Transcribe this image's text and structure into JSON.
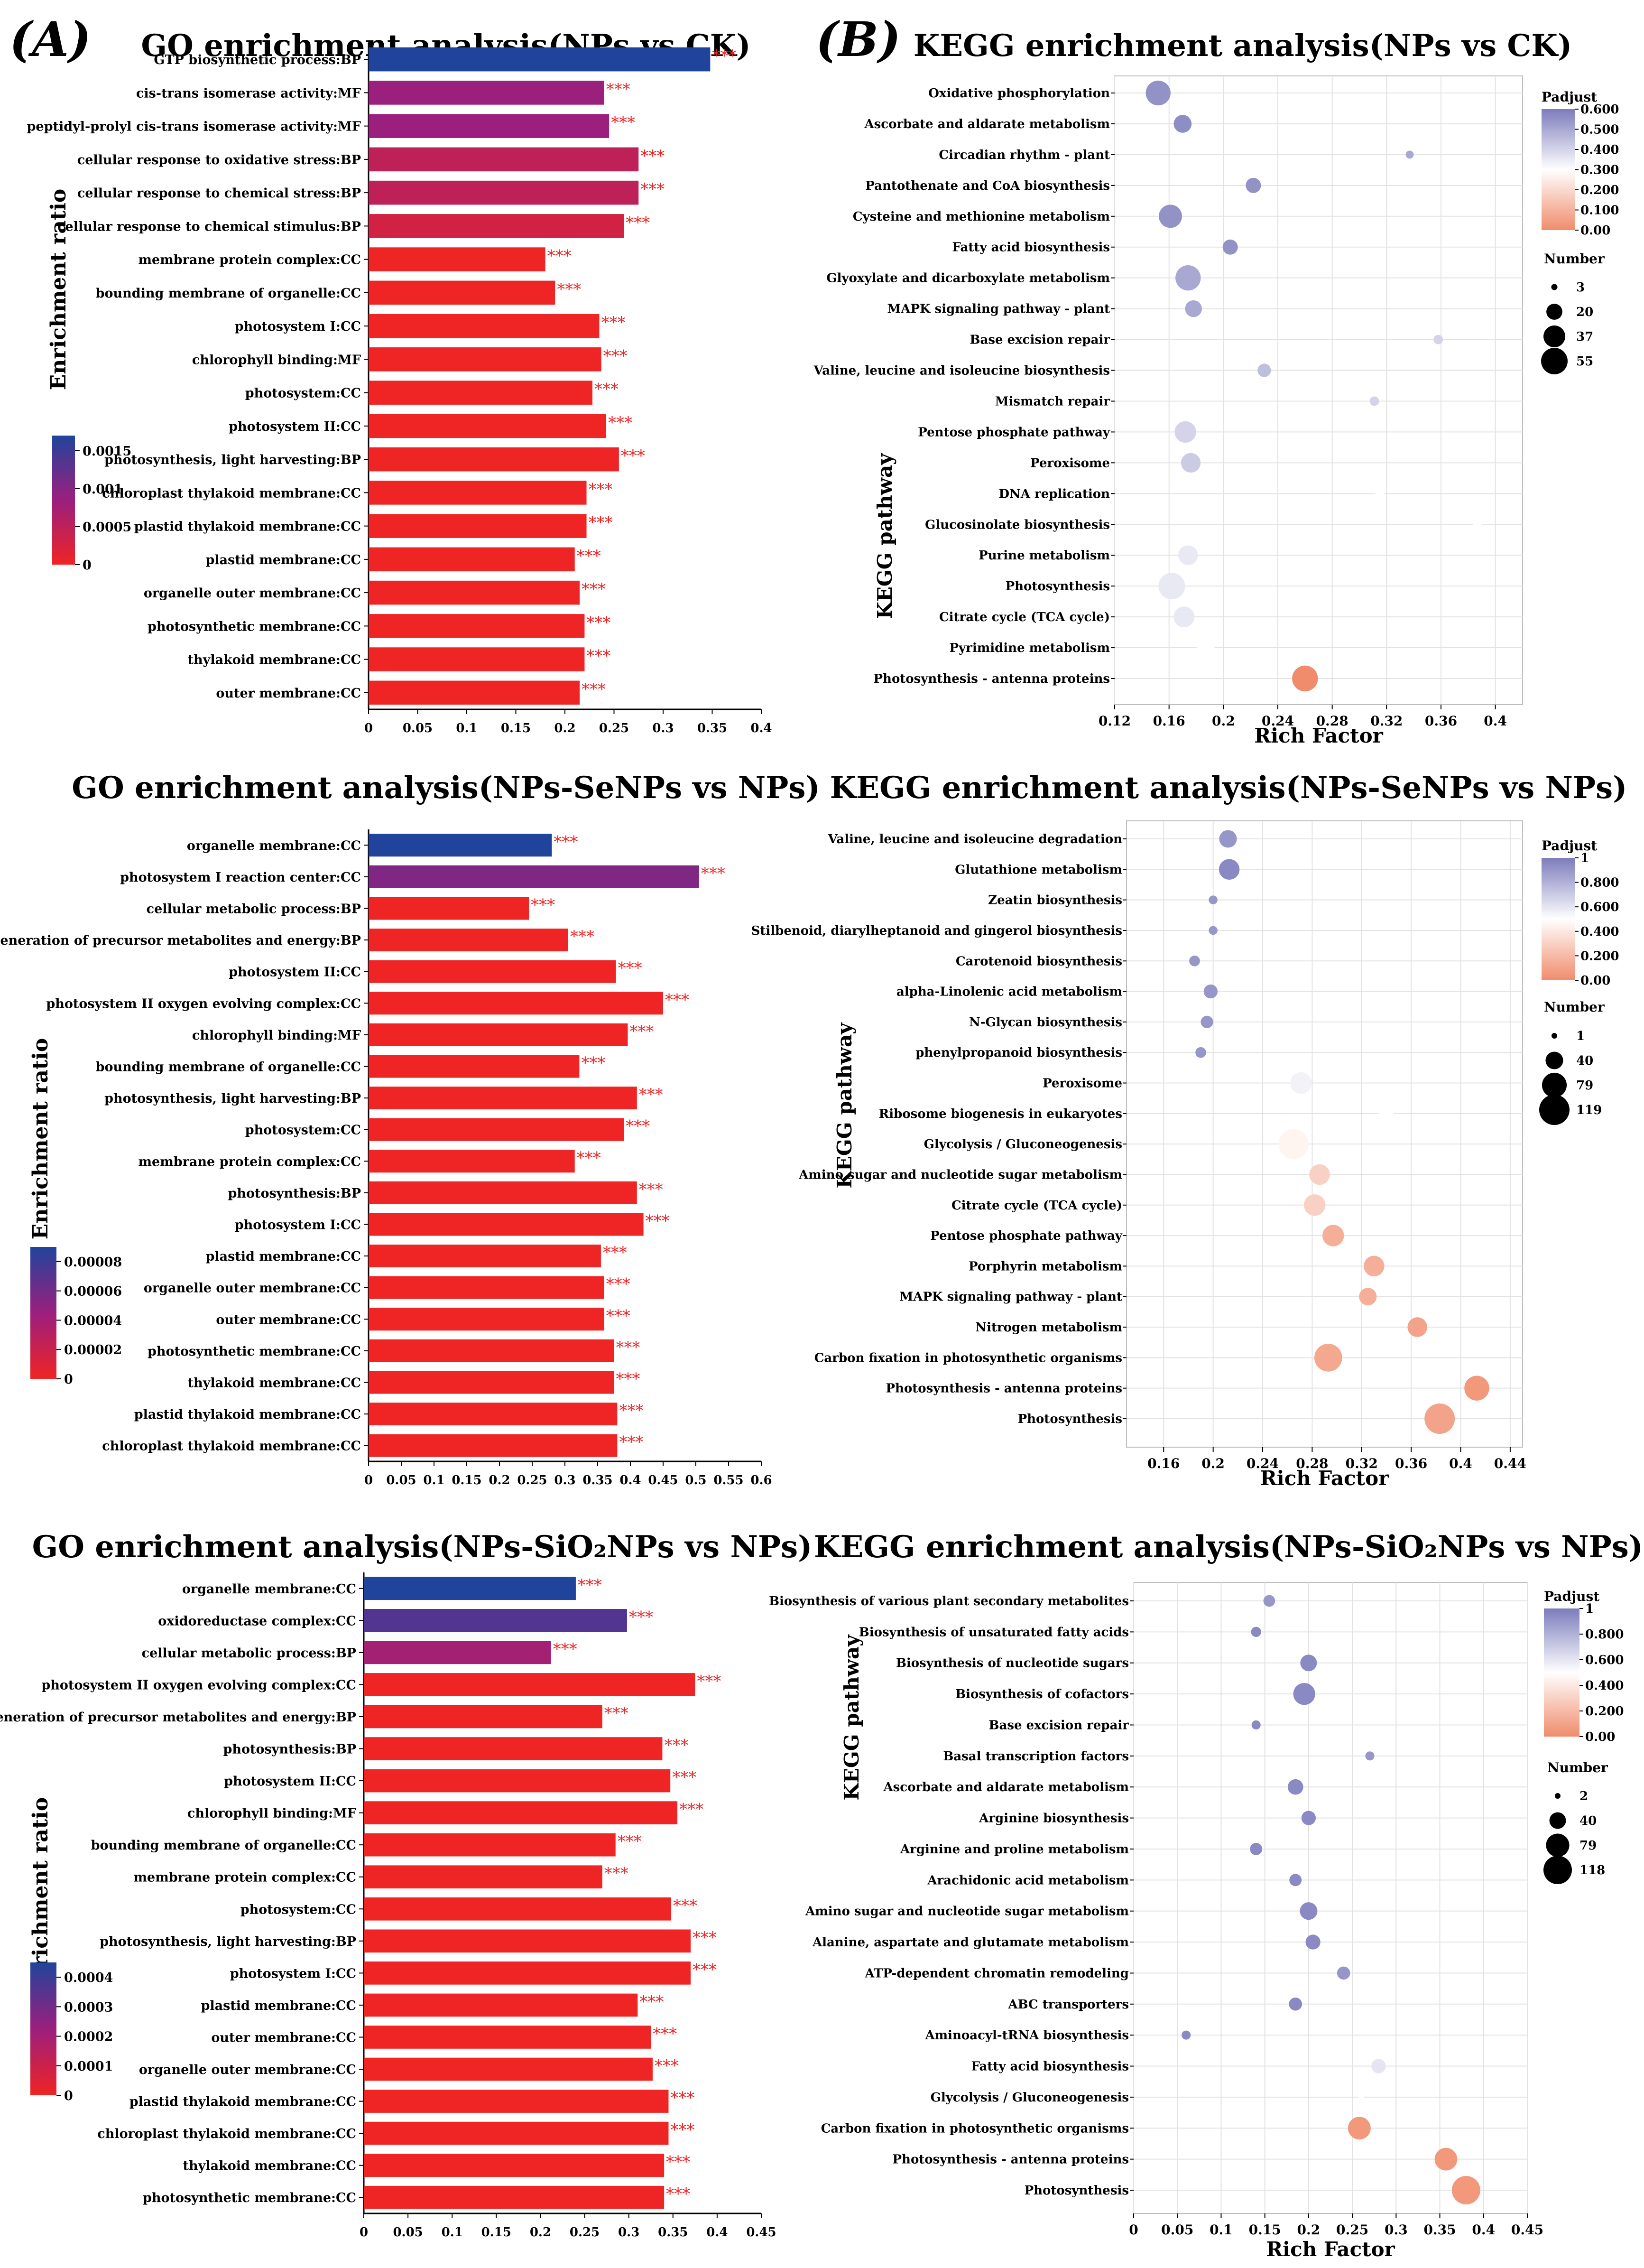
{
  "panel_labels": {
    "A": "(A)",
    "B": "(B)"
  },
  "chart_data": [
    {
      "id": "go1",
      "type": "bar",
      "orientation": "horizontal",
      "title": "GO enrichment analysis(NPs vs CK)",
      "ylabel": "Enrichment ratio",
      "xlim": [
        0,
        0.4
      ],
      "xticks": [
        "0",
        "0.05",
        "0.1",
        "0.15",
        "0.2",
        "0.25",
        "0.3",
        "0.35",
        "0.4"
      ],
      "significance": "***",
      "categories": [
        "GTP biosynthetic process:BP",
        "cis-trans isomerase activity:MF",
        "peptidyl-prolyl cis-trans isomerase activity:MF",
        "cellular response to oxidative stress:BP",
        "cellular response to chemical stress:BP",
        "cellular response to chemical stimulus:BP",
        "membrane protein complex:CC",
        "bounding membrane of organelle:CC",
        "photosystem I:CC",
        "chlorophyll binding:MF",
        "photosystem:CC",
        "photosystem II:CC",
        "photosynthesis, light harvesting:BP",
        "chloroplast thylakoid membrane:CC",
        "plastid thylakoid membrane:CC",
        "plastid membrane:CC",
        "organelle outer membrane:CC",
        "photosynthetic membrane:CC",
        "thylakoid membrane:CC",
        "outer membrane:CC"
      ],
      "values": [
        0.348,
        0.24,
        0.245,
        0.275,
        0.275,
        0.26,
        0.18,
        0.19,
        0.235,
        0.237,
        0.228,
        0.242,
        0.255,
        0.222,
        0.222,
        0.21,
        0.215,
        0.22,
        0.22,
        0.215
      ],
      "padj": [
        0.0017,
        0.00085,
        0.00085,
        0.0005,
        0.0005,
        0.0003,
        0.0,
        0.0,
        0.0,
        0.0,
        0.0,
        0.0,
        0.0,
        0.0,
        0.0,
        0.0,
        0.0,
        0.0,
        0.0,
        0.0
      ],
      "color_scale": {
        "range": [
          0,
          0.0017
        ],
        "ticks": [
          "0.0015",
          "0.001",
          "0.0005",
          "0"
        ],
        "tick_values": [
          0.0015,
          0.001,
          0.0005,
          0
        ],
        "colors": [
          "#ef2424",
          "#9b1f7d",
          "#20449c"
        ]
      }
    },
    {
      "id": "go2",
      "type": "bar",
      "orientation": "horizontal",
      "title": "GO enrichment analysis(NPs-SeNPs  vs  NPs)",
      "ylabel": "Enrichment ratio",
      "xlim": [
        0,
        0.6
      ],
      "xticks": [
        "0",
        "0.05",
        "0.1",
        "0.15",
        "0.2",
        "0.25",
        "0.3",
        "0.35",
        "0.4",
        "0.45",
        "0.5",
        "0.55",
        "0.6"
      ],
      "significance": "***",
      "categories": [
        "organelle membrane:CC",
        "photosystem I reaction center:CC",
        "cellular metabolic process:BP",
        "generation of precursor metabolites and energy:BP",
        "photosystem II:CC",
        "photosystem II oxygen evolving complex:CC",
        "chlorophyll binding:MF",
        "bounding membrane of organelle:CC",
        "photosynthesis, light harvesting:BP",
        "photosystem:CC",
        "membrane protein complex:CC",
        "photosynthesis:BP",
        "photosystem I:CC",
        "plastid membrane:CC",
        "organelle outer membrane:CC",
        "outer membrane:CC",
        "photosynthetic membrane:CC",
        "thylakoid membrane:CC",
        "plastid thylakoid membrane:CC",
        "chloroplast thylakoid membrane:CC"
      ],
      "values": [
        0.28,
        0.505,
        0.245,
        0.305,
        0.378,
        0.45,
        0.396,
        0.322,
        0.41,
        0.39,
        0.315,
        0.41,
        0.42,
        0.355,
        0.36,
        0.36,
        0.375,
        0.375,
        0.38,
        0.38
      ],
      "padj": [
        9e-05,
        5.5e-05,
        0.0,
        0.0,
        0.0,
        0.0,
        0.0,
        0.0,
        0.0,
        0.0,
        0.0,
        0.0,
        0.0,
        0.0,
        0.0,
        0.0,
        0.0,
        0.0,
        0.0,
        0.0
      ],
      "color_scale": {
        "range": [
          0,
          9e-05
        ],
        "ticks": [
          "0.00008",
          "0.00006",
          "0.00004",
          "0.00002",
          "0"
        ],
        "tick_values": [
          8e-05,
          6e-05,
          4e-05,
          2e-05,
          0
        ],
        "colors": [
          "#ef2424",
          "#9b1f7d",
          "#20449c"
        ]
      }
    },
    {
      "id": "go3",
      "type": "bar",
      "orientation": "horizontal",
      "title": "GO enrichment analysis(NPs-SiO₂NPs  vs  NPs)",
      "ylabel": "Enrichment ratio",
      "xlim": [
        0,
        0.45
      ],
      "xticks": [
        "0",
        "0.05",
        "0.1",
        "0.15",
        "0.2",
        "0.25",
        "0.3",
        "0.35",
        "0.4",
        "0.45"
      ],
      "significance": "***",
      "categories": [
        "organelle membrane:CC",
        "oxidoreductase complex:CC",
        "cellular metabolic process:BP",
        "photosystem II oxygen evolving complex:CC",
        "generation of precursor metabolites and energy:BP",
        "photosynthesis:BP",
        "photosystem II:CC",
        "chlorophyll binding:MF",
        "bounding membrane of organelle:CC",
        "membrane protein complex:CC",
        "photosystem:CC",
        "photosynthesis, light harvesting:BP",
        "photosystem I:CC",
        "plastid membrane:CC",
        "outer membrane:CC",
        "organelle outer membrane:CC",
        "plastid thylakoid membrane:CC",
        "chloroplast thylakoid membrane:CC",
        "thylakoid membrane:CC",
        "photosynthetic membrane:CC"
      ],
      "values": [
        0.24,
        0.298,
        0.212,
        0.375,
        0.27,
        0.338,
        0.347,
        0.355,
        0.285,
        0.27,
        0.348,
        0.37,
        0.37,
        0.31,
        0.325,
        0.327,
        0.345,
        0.345,
        0.34,
        0.34
      ],
      "padj": [
        0.00045,
        0.00036,
        0.0002,
        0.0,
        0.0,
        0.0,
        0.0,
        0.0,
        0.0,
        0.0,
        0.0,
        0.0,
        0.0,
        0.0,
        0.0,
        0.0,
        0.0,
        0.0,
        0.0,
        0.0
      ],
      "color_scale": {
        "range": [
          0,
          0.00045
        ],
        "ticks": [
          "0.0004",
          "0.0003",
          "0.0002",
          "0.0001",
          "0"
        ],
        "tick_values": [
          0.0004,
          0.0003,
          0.0002,
          0.0001,
          0
        ],
        "colors": [
          "#ef2424",
          "#9b1f7d",
          "#20449c"
        ]
      }
    },
    {
      "id": "kegg1",
      "type": "scatter",
      "title": "KEGG enrichment analysis(NPs vs CK)",
      "xlabel": "Rich Factor",
      "ylabel": "KEGG pathway",
      "xlim": [
        0.12,
        0.42
      ],
      "xticks": [
        0.12,
        0.16,
        0.2,
        0.24,
        0.28,
        0.32,
        0.36,
        0.4
      ],
      "xtick_labels": [
        "0.12",
        "0.16",
        "0.2",
        "0.24",
        "0.28",
        "0.32",
        "0.36",
        "0.4"
      ],
      "categories": [
        "Oxidative phosphorylation",
        "Ascorbate and aldarate metabolism",
        "Circadian rhythm - plant",
        "Pantothenate and CoA biosynthesis",
        "Cysteine and methionine metabolism",
        "Fatty acid biosynthesis",
        "Glyoxylate and dicarboxylate metabolism",
        "MAPK signaling pathway - plant",
        "Base excision repair",
        "Valine, leucine and isoleucine biosynthesis",
        "Mismatch repair",
        "Pentose phosphate pathway",
        "Peroxisome",
        "DNA replication",
        "Glucosinolate biosynthesis",
        "Purine metabolism",
        "Photosynthesis",
        "Citrate cycle (TCA cycle)",
        "Pyrimidine metabolism",
        "Photosynthesis - antenna proteins"
      ],
      "x": [
        0.152,
        0.17,
        0.337,
        0.222,
        0.161,
        0.205,
        0.174,
        0.178,
        0.358,
        0.23,
        0.311,
        0.172,
        0.176,
        0.315,
        0.387,
        0.174,
        0.162,
        0.171,
        0.187,
        0.26
      ],
      "number": [
        48,
        25,
        5,
        18,
        42,
        18,
        50,
        22,
        7,
        14,
        7,
        36,
        30,
        6,
        6,
        30,
        55,
        34,
        24,
        52
      ],
      "padj": [
        0.55,
        0.56,
        0.5,
        0.55,
        0.55,
        0.55,
        0.5,
        0.5,
        0.4,
        0.45,
        0.4,
        0.4,
        0.42,
        0.3,
        0.3,
        0.35,
        0.35,
        0.35,
        0.3,
        0.0
      ],
      "padjust_legend": {
        "title": "Padjust",
        "range": [
          0,
          0.6
        ],
        "ticks": [
          "0.600",
          "0.500",
          "0.400",
          "0.300",
          "0.200",
          "0.100",
          "0.00"
        ],
        "tick_values": [
          0.6,
          0.5,
          0.4,
          0.3,
          0.2,
          0.1,
          0.0
        ]
      },
      "number_legend": {
        "title": "Number",
        "values": [
          3,
          20,
          37,
          55
        ],
        "labels": [
          "3",
          "20",
          "37",
          "55"
        ],
        "max": 55
      }
    },
    {
      "id": "kegg2",
      "type": "scatter",
      "title": "KEGG enrichment analysis(NPs-SeNPs  vs  NPs)",
      "xlabel": "Rich Factor",
      "ylabel": "KEGG pathway",
      "xlim": [
        0.13,
        0.45
      ],
      "xticks": [
        0.16,
        0.2,
        0.24,
        0.28,
        0.32,
        0.36,
        0.4,
        0.44
      ],
      "xtick_labels": [
        "0.16",
        "0.2",
        "0.24",
        "0.28",
        "0.32",
        "0.36",
        "0.4",
        "0.44"
      ],
      "categories": [
        "Valine, leucine and isoleucine degradation",
        "Glutathione metabolism",
        "Zeatin biosynthesis",
        "Stilbenoid, diarylheptanoid and gingerol biosynthesis",
        "Carotenoid biosynthesis",
        "alpha-Linolenic acid metabolism",
        "N-Glycan biosynthesis",
        "phenylpropanoid biosynthesis",
        "Peroxisome",
        "Ribosome biogenesis in eukaryotes",
        "Glycolysis / Gluconeogenesis",
        "Amino sugar and nucleotide sugar metabolism",
        "Citrate cycle (TCA cycle)",
        "Pentose phosphate pathway",
        "Porphyrin metabolism",
        "MAPK signaling pathway - plant",
        "Nitrogen metabolism",
        "Carbon fixation in photosynthetic organisms",
        "Photosynthesis - antenna proteins",
        "Photosynthesis"
      ],
      "x": [
        0.212,
        0.213,
        0.2,
        0.2,
        0.185,
        0.198,
        0.195,
        0.19,
        0.271,
        0.34,
        0.265,
        0.286,
        0.282,
        0.297,
        0.33,
        0.325,
        0.365,
        0.293,
        0.413,
        0.383
      ],
      "number": [
        40,
        55,
        10,
        10,
        15,
        25,
        20,
        15,
        60,
        30,
        115,
        55,
        60,
        60,
        55,
        40,
        50,
        100,
        80,
        119
      ],
      "padj": [
        0.9,
        0.95,
        0.9,
        0.9,
        0.9,
        0.9,
        0.9,
        0.9,
        0.55,
        0.5,
        0.45,
        0.3,
        0.3,
        0.15,
        0.15,
        0.15,
        0.1,
        0.12,
        0.05,
        0.1
      ],
      "padjust_legend": {
        "title": "Padjust",
        "range": [
          0,
          1
        ],
        "ticks": [
          "1",
          "0.800",
          "0.600",
          "0.400",
          "0.200",
          "0.00"
        ],
        "tick_values": [
          1,
          0.8,
          0.6,
          0.4,
          0.2,
          0.0
        ]
      },
      "number_legend": {
        "title": "Number",
        "values": [
          1,
          40,
          79,
          119
        ],
        "labels": [
          "1",
          "40",
          "79",
          "119"
        ],
        "max": 119
      }
    },
    {
      "id": "kegg3",
      "type": "scatter",
      "title": "KEGG enrichment analysis(NPs-SiO₂NPs  vs  NPs)",
      "xlabel": "Rich Factor",
      "ylabel": "KEGG pathway",
      "xlim": [
        0,
        0.45
      ],
      "xticks": [
        0,
        0.05,
        0.1,
        0.15,
        0.2,
        0.25,
        0.3,
        0.35,
        0.4,
        0.45
      ],
      "xtick_labels": [
        "0",
        "0.05",
        "0.1",
        "0.15",
        "0.2",
        "0.25",
        "0.3",
        "0.35",
        "0.4",
        "0.45"
      ],
      "categories": [
        "Biosynthesis of various plant secondary metabolites",
        "Biosynthesis of unsaturated fatty acids",
        "Biosynthesis of nucleotide sugars",
        "Biosynthesis of cofactors",
        "Base excision repair",
        "Basal transcription factors",
        "Ascorbate and aldarate metabolism",
        "Arginine biosynthesis",
        "Arginine and proline metabolism",
        "Arachidonic acid metabolism",
        "Amino sugar and nucleotide sugar metabolism",
        "Alanine, aspartate and glutamate metabolism",
        "ATP-dependent chromatin remodeling",
        "ABC transporters",
        "Aminoacyl-tRNA biosynthesis",
        "Fatty acid biosynthesis",
        "Glycolysis / Gluconeogenesis",
        "Carbon fixation in photosynthetic organisms",
        "Photosynthesis - antenna proteins",
        "Photosynthesis"
      ],
      "x": [
        0.155,
        0.14,
        0.2,
        0.195,
        0.14,
        0.27,
        0.185,
        0.2,
        0.14,
        0.185,
        0.2,
        0.205,
        0.24,
        0.185,
        0.06,
        0.28,
        0.26,
        0.258,
        0.357,
        0.38
      ],
      "number": [
        20,
        15,
        40,
        70,
        12,
        12,
        35,
        30,
        22,
        22,
        45,
        32,
        25,
        25,
        12,
        30,
        2,
        75,
        75,
        118
      ],
      "padj": [
        0.9,
        0.95,
        0.95,
        0.95,
        0.95,
        0.9,
        0.95,
        0.95,
        0.95,
        0.95,
        0.95,
        0.95,
        0.9,
        0.95,
        0.95,
        0.6,
        0.5,
        0.05,
        0.05,
        0.05
      ],
      "padjust_legend": {
        "title": "Padjust",
        "range": [
          0,
          1
        ],
        "ticks": [
          "1",
          "0.800",
          "0.600",
          "0.400",
          "0.200",
          "0.00"
        ],
        "tick_values": [
          1,
          0.8,
          0.6,
          0.4,
          0.2,
          0.0
        ]
      },
      "number_legend": {
        "title": "Number",
        "values": [
          2,
          40,
          79,
          118
        ],
        "labels": [
          "2",
          "40",
          "79",
          "118"
        ],
        "max": 118
      }
    }
  ]
}
